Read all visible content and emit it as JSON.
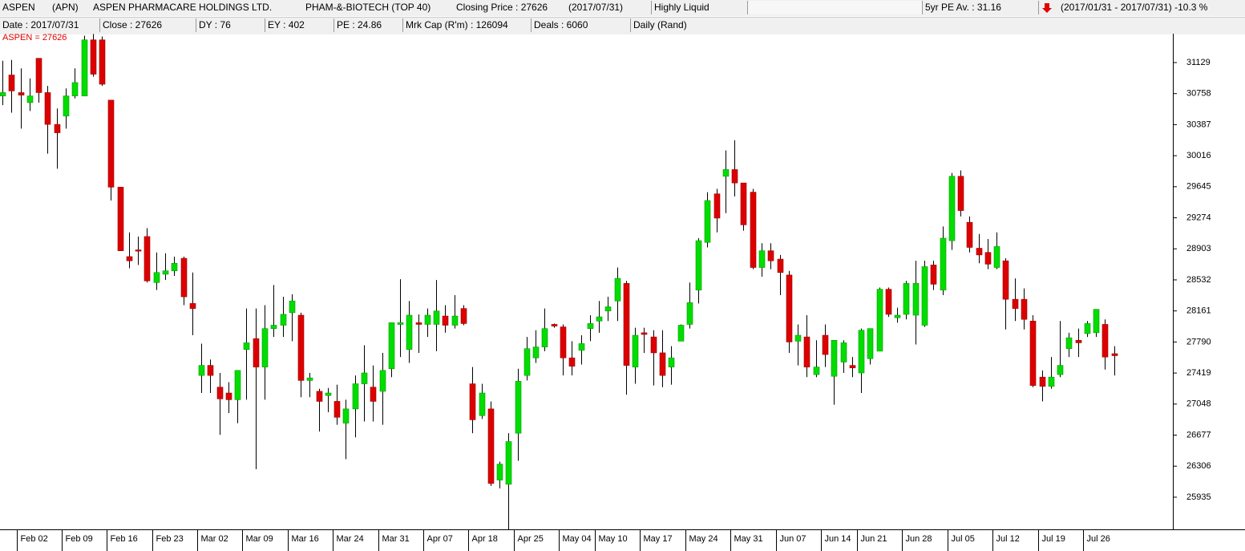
{
  "header": {
    "code": "ASPEN",
    "ticker": "(APN)",
    "company": "ASPEN PHARMACARE HOLDINGS LTD.",
    "sector": "PHAM-&-BIOTECH (TOP 40)",
    "closing_price": "Closing Price : 27626",
    "closing_date": "(2017/07/31)",
    "liquidity": "Highly Liquid",
    "pe_average": "5yr PE Av. : 31.16",
    "period_change": "(2017/01/31 - 2017/07/31)  -10.3 %",
    "date": "Date : 2017/07/31",
    "close": "Close : 27626",
    "dy": "DY : 76",
    "ey": "EY : 402",
    "pe": "PE : 24.86",
    "market_cap": "Mrk Cap (R'm) : 126094",
    "deals": "Deals : 6060",
    "frequency": "Daily (Rand)"
  },
  "chart_data": {
    "type": "candlestick",
    "label": "ASPEN = 27626",
    "up_color": "#00dd00",
    "down_color": "#dd0000",
    "wick_color": "#000000",
    "ylim": [
      25570,
      31474
    ],
    "yticks": [
      25935,
      26306,
      26677,
      27048,
      27419,
      27790,
      28161,
      28532,
      28903,
      29274,
      29645,
      30016,
      30387,
      30758,
      31129
    ],
    "xlim": [
      -0.27,
      129.5
    ],
    "xticks": [
      {
        "value": 2,
        "label": "Feb 02"
      },
      {
        "value": 7,
        "label": "Feb 09"
      },
      {
        "value": 12,
        "label": "Feb 16"
      },
      {
        "value": 17,
        "label": "Feb 23"
      },
      {
        "value": 22,
        "label": "Mar 02"
      },
      {
        "value": 27,
        "label": "Mar 09"
      },
      {
        "value": 32,
        "label": "Mar 16"
      },
      {
        "value": 37,
        "label": "Mar 24"
      },
      {
        "value": 42,
        "label": "Mar 31"
      },
      {
        "value": 47,
        "label": "Apr 07"
      },
      {
        "value": 52,
        "label": "Apr 18"
      },
      {
        "value": 57,
        "label": "Apr 25"
      },
      {
        "value": 62,
        "label": "May 04"
      },
      {
        "value": 66,
        "label": "May 10"
      },
      {
        "value": 71,
        "label": "May 17"
      },
      {
        "value": 76,
        "label": "May 24"
      },
      {
        "value": 81,
        "label": "May 31"
      },
      {
        "value": 86,
        "label": "Jun 07"
      },
      {
        "value": 91,
        "label": "Jun 14"
      },
      {
        "value": 95,
        "label": "Jun 21"
      },
      {
        "value": 100,
        "label": "Jun 28"
      },
      {
        "value": 105,
        "label": "Jul 05"
      },
      {
        "value": 110,
        "label": "Jul 12"
      },
      {
        "value": 115,
        "label": "Jul 19"
      },
      {
        "value": 120,
        "label": "Jul 26"
      }
    ],
    "open": [
      30730,
      30980,
      30770,
      30650,
      31180,
      30770,
      30390,
      30490,
      30730,
      30730,
      31400,
      31400,
      30680,
      29640,
      28810,
      28890,
      29050,
      28500,
      28600,
      28640,
      28790,
      28250,
      27390,
      27510,
      27250,
      27180,
      27100,
      27700,
      27830,
      27490,
      27950,
      27990,
      28140,
      28110,
      27330,
      27200,
      27150,
      27080,
      26820,
      26990,
      27290,
      27250,
      27200,
      27470,
      28000,
      27700,
      28020,
      28000,
      28000,
      28100,
      27990,
      28190,
      27290,
      26910,
      26990,
      26140,
      26090,
      26700,
      27390,
      27600,
      27730,
      28000,
      27970,
      27600,
      27690,
      27950,
      28040,
      28160,
      28280,
      28490,
      27490,
      27900,
      27850,
      27660,
      27490,
      27800,
      28000,
      28410,
      28980,
      29560,
      29770,
      29850,
      29690,
      29580,
      28680,
      28880,
      28780,
      28590,
      27800,
      27850,
      27400,
      27870,
      27380,
      27550,
      27510,
      27420,
      27590,
      27680,
      28420,
      28080,
      28120,
      28110,
      27990,
      28710,
      28410,
      29000,
      29770,
      29220,
      28910,
      28860,
      28680,
      28760,
      28300,
      28300,
      28040,
      27370,
      27260,
      27400,
      27710,
      27810,
      27890,
      27900,
      28000,
      27650
    ],
    "high": [
      31150,
      31160,
      31060,
      30940,
      31180,
      30850,
      30580,
      30820,
      31060,
      31450,
      31470,
      31440,
      30680,
      29640,
      29100,
      29050,
      29150,
      28860,
      28850,
      28810,
      28810,
      28620,
      27770,
      27580,
      27420,
      27310,
      27450,
      28190,
      28190,
      28230,
      28470,
      28330,
      28360,
      28140,
      27420,
      27230,
      27240,
      27280,
      27100,
      27390,
      27750,
      27510,
      27660,
      28020,
      28540,
      28280,
      28120,
      28190,
      28530,
      28230,
      28350,
      28230,
      27490,
      27290,
      27080,
      26360,
      26700,
      27470,
      27850,
      27930,
      28190,
      28010,
      28000,
      27800,
      27870,
      28110,
      28280,
      28330,
      28680,
      28520,
      27960,
      27960,
      27930,
      27930,
      27740,
      28000,
      28500,
      29030,
      29580,
      29620,
      30080,
      30200,
      29690,
      29620,
      28970,
      28970,
      28830,
      28640,
      28000,
      28110,
      27810,
      28000,
      27810,
      27810,
      27610,
      27950,
      27950,
      28440,
      28440,
      28200,
      28520,
      28760,
      28760,
      28760,
      29170,
      29810,
      29840,
      29290,
      29080,
      29020,
      29100,
      28790,
      28550,
      28430,
      28110,
      27450,
      27610,
      28040,
      27900,
      27950,
      28040,
      28180,
      28060,
      27740
    ],
    "low": [
      30620,
      30530,
      30340,
      30550,
      30650,
      30040,
      29860,
      30340,
      30700,
      30730,
      30960,
      30850,
      29480,
      28880,
      28670,
      28710,
      28500,
      28410,
      28530,
      28580,
      28230,
      27870,
      27180,
      27180,
      26680,
      26940,
      26820,
      27100,
      26270,
      27100,
      27850,
      27850,
      27800,
      27130,
      27130,
      26720,
      26950,
      26800,
      26390,
      26650,
      26840,
      26840,
      26800,
      27370,
      27610,
      27540,
      27660,
      27850,
      27680,
      27900,
      27950,
      27990,
      26700,
      26870,
      26070,
      26040,
      25550,
      26370,
      27330,
      27540,
      27680,
      27960,
      27390,
      27390,
      27520,
      27800,
      27900,
      28040,
      28040,
      27160,
      27290,
      27660,
      27270,
      27250,
      27280,
      27800,
      27950,
      28250,
      28920,
      29100,
      29330,
      29530,
      29120,
      28660,
      28570,
      28660,
      28350,
      27660,
      27510,
      27370,
      27370,
      27490,
      27040,
      27420,
      27370,
      27180,
      27520,
      27680,
      28090,
      28020,
      28060,
      27760,
      27970,
      28410,
      28350,
      28890,
      29290,
      28860,
      28730,
      28660,
      28660,
      27940,
      28040,
      27940,
      27250,
      27080,
      27230,
      27370,
      27610,
      27610,
      27850,
      27850,
      27460,
      27390
    ],
    "close": [
      30770,
      30790,
      30740,
      30730,
      30770,
      30390,
      30290,
      30730,
      30890,
      31400,
      30990,
      30870,
      29640,
      28880,
      28760,
      28880,
      28520,
      28620,
      28640,
      28730,
      28330,
      28190,
      27510,
      27390,
      27110,
      27100,
      27450,
      27780,
      27490,
      27950,
      27990,
      28120,
      28280,
      27330,
      27360,
      27080,
      27180,
      26890,
      26990,
      27290,
      27420,
      27080,
      27450,
      28020,
      28020,
      28110,
      28000,
      28110,
      28160,
      27990,
      28100,
      28010,
      26860,
      27180,
      26100,
      26330,
      26600,
      27320,
      27710,
      27730,
      27950,
      27980,
      27600,
      27500,
      27770,
      28010,
      28090,
      28210,
      28550,
      27510,
      27870,
      27880,
      27660,
      27390,
      27600,
      27990,
      28260,
      29000,
      29480,
      29270,
      29850,
      29690,
      29190,
      28680,
      28880,
      28760,
      28620,
      27790,
      27870,
      27490,
      27490,
      27640,
      27810,
      27780,
      27480,
      27930,
      27950,
      28420,
      28120,
      28110,
      28490,
      28490,
      28690,
      28480,
      29030,
      29770,
      29360,
      28920,
      28830,
      28720,
      28930,
      28300,
      28190,
      28060,
      27270,
      27260,
      27370,
      27510,
      27840,
      27780,
      28010,
      28180,
      27610,
      27626
    ]
  }
}
